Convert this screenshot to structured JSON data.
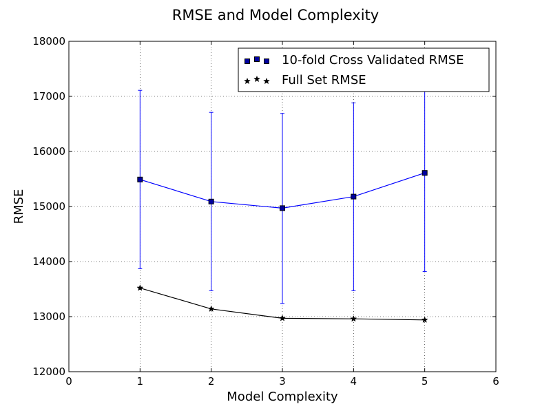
{
  "chart_data": {
    "type": "line",
    "title": "RMSE and Model Complexity",
    "xlabel": "Model Complexity",
    "ylabel": "RMSE",
    "xlim": [
      0,
      6
    ],
    "ylim": [
      12000,
      18000
    ],
    "x_ticks": [
      "0",
      "1",
      "2",
      "3",
      "4",
      "5",
      "6"
    ],
    "y_ticks": [
      "12000",
      "13000",
      "14000",
      "15000",
      "16000",
      "17000",
      "18000"
    ],
    "grid": true,
    "legend_position": "top-right",
    "series": [
      {
        "name": "10-fold Cross Validated RMSE",
        "color": "#0000ff",
        "marker": "square",
        "marker_fill": "#0000a0",
        "x": [
          1,
          2,
          3,
          4,
          5
        ],
        "y": [
          15490,
          15090,
          14970,
          15180,
          15610
        ],
        "error_low": [
          13870,
          13470,
          13240,
          13470,
          13820
        ],
        "error_high": [
          17110,
          16710,
          16690,
          16880,
          17400
        ]
      },
      {
        "name": "Full Set RMSE",
        "color": "#000000",
        "marker": "star",
        "marker_fill": "#000000",
        "x": [
          1,
          2,
          3,
          4,
          5
        ],
        "y": [
          13520,
          13140,
          12970,
          12960,
          12940
        ]
      }
    ]
  }
}
